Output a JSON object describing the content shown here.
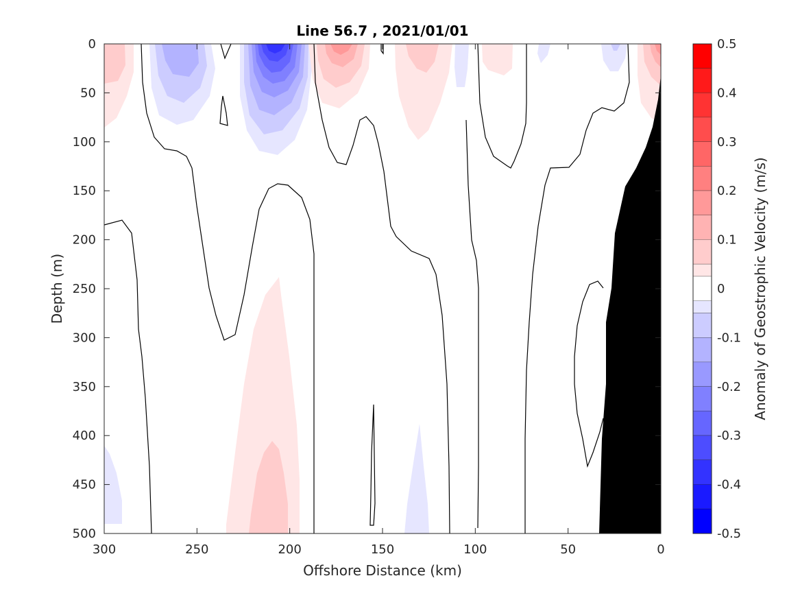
{
  "chart_data": {
    "type": "contour",
    "title": "Line 56.7 , 2021/01/01",
    "xlabel": "Offshore Distance (km)",
    "ylabel": "Depth (m)",
    "colorbar_label": "Anomaly of Geostrophic Velocity (m/s)",
    "xlim": [
      300,
      0
    ],
    "ylim": [
      500,
      0
    ],
    "x_reversed": true,
    "y_reversed": true,
    "xticks": [
      "300",
      "250",
      "200",
      "150",
      "100",
      "50",
      "0"
    ],
    "yticks": [
      "0",
      "50",
      "100",
      "150",
      "200",
      "250",
      "300",
      "350",
      "400",
      "450",
      "500"
    ],
    "colorbar_ticks": [
      "0.5",
      "0.4",
      "0.3",
      "0.2",
      "0.1",
      "0",
      "-0.1",
      "-0.2",
      "-0.3",
      "-0.4",
      "-0.5"
    ],
    "colorbar_range": [
      -0.5,
      0.5
    ],
    "colorbar_levels": [
      {
        "from": 0.45,
        "to": 0.5,
        "color": "#ff0000"
      },
      {
        "from": 0.4,
        "to": 0.45,
        "color": "#ff1a1a"
      },
      {
        "from": 0.35,
        "to": 0.4,
        "color": "#ff3333"
      },
      {
        "from": 0.3,
        "to": 0.35,
        "color": "#ff4d4d"
      },
      {
        "from": 0.25,
        "to": 0.3,
        "color": "#ff6666"
      },
      {
        "from": 0.2,
        "to": 0.25,
        "color": "#ff8080"
      },
      {
        "from": 0.15,
        "to": 0.2,
        "color": "#ff9999"
      },
      {
        "from": 0.1,
        "to": 0.15,
        "color": "#ffb3b3"
      },
      {
        "from": 0.05,
        "to": 0.1,
        "color": "#ffcccc"
      },
      {
        "from": 0.025,
        "to": 0.05,
        "color": "#ffe6e6"
      },
      {
        "from": -0.025,
        "to": 0.025,
        "color": "#ffffff"
      },
      {
        "from": -0.05,
        "to": -0.025,
        "color": "#e6e6ff"
      },
      {
        "from": -0.1,
        "to": -0.05,
        "color": "#ccccff"
      },
      {
        "from": -0.15,
        "to": -0.1,
        "color": "#b3b3ff"
      },
      {
        "from": -0.2,
        "to": -0.15,
        "color": "#9999ff"
      },
      {
        "from": -0.25,
        "to": -0.2,
        "color": "#8080ff"
      },
      {
        "from": -0.3,
        "to": -0.25,
        "color": "#6666ff"
      },
      {
        "from": -0.35,
        "to": -0.3,
        "color": "#4d4dff"
      },
      {
        "from": -0.4,
        "to": -0.35,
        "color": "#3333ff"
      },
      {
        "from": -0.45,
        "to": -0.4,
        "color": "#1a1aff"
      },
      {
        "from": -0.5,
        "to": -0.45,
        "color": "#0000ff"
      }
    ],
    "features": [
      {
        "kind": "anomaly",
        "x": 290,
        "depth_top": 0,
        "depth_bottom": 85,
        "peak": 0.1
      },
      {
        "kind": "anomaly",
        "x": 262,
        "depth_top": 0,
        "depth_bottom": 85,
        "peak": -0.15
      },
      {
        "kind": "anomaly",
        "x": 207,
        "depth_top": 0,
        "depth_bottom": 110,
        "peak": -0.45
      },
      {
        "kind": "anomaly",
        "x": 173,
        "depth_top": 0,
        "depth_bottom": 65,
        "peak": 0.2
      },
      {
        "kind": "anomaly",
        "x": 130,
        "depth_top": 0,
        "depth_bottom": 95,
        "peak": 0.1
      },
      {
        "kind": "anomaly",
        "x": 107,
        "depth_top": 0,
        "depth_bottom": 45,
        "peak": -0.05
      },
      {
        "kind": "anomaly",
        "x": 85,
        "depth_top": 0,
        "depth_bottom": 35,
        "peak": 0.05
      },
      {
        "kind": "anomaly",
        "x": 60,
        "depth_top": 0,
        "depth_bottom": 20,
        "peak": -0.05
      },
      {
        "kind": "anomaly",
        "x": 25,
        "depth_top": 0,
        "depth_bottom": 30,
        "peak": -0.05
      },
      {
        "kind": "anomaly",
        "x": 5,
        "depth_top": 0,
        "depth_bottom": 65,
        "peak": 0.15
      },
      {
        "kind": "anomaly",
        "x": 210,
        "depth_top": 240,
        "depth_bottom": 500,
        "peak": 0.1
      },
      {
        "kind": "anomaly",
        "x": 295,
        "depth_top": 410,
        "depth_bottom": 490,
        "peak": -0.05
      },
      {
        "kind": "anomaly",
        "x": 130,
        "depth_top": 390,
        "depth_bottom": 500,
        "peak": -0.05
      }
    ],
    "bathymetry_color": "#000000"
  }
}
